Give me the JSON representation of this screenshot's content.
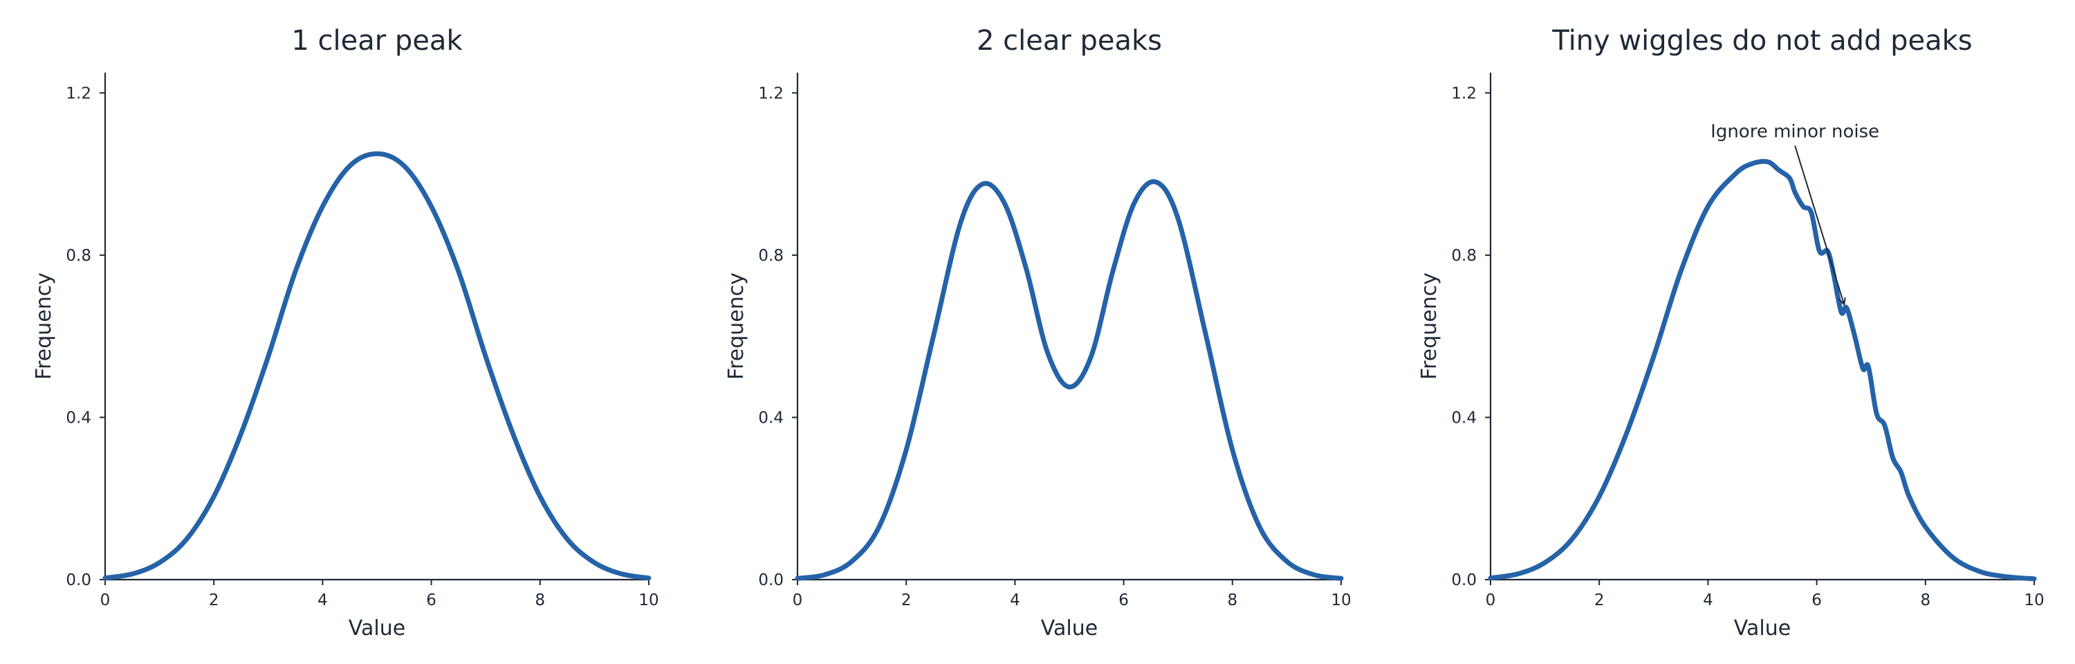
{
  "colors": {
    "series": "#2563a8",
    "text": "#1f2937"
  },
  "chart_data": [
    {
      "type": "line",
      "title": "1 clear peak",
      "xlabel": "Value",
      "ylabel": "Frequency",
      "xlim": [
        0,
        10
      ],
      "ylim": [
        0,
        1.25
      ],
      "xticks": [
        0,
        2,
        4,
        6,
        8,
        10
      ],
      "xtick_labels": [
        "0",
        "2",
        "4",
        "6",
        "8",
        "10"
      ],
      "yticks": [
        0,
        0.4,
        0.8,
        1.2
      ],
      "ytick_labels": [
        "0.0",
        "0.4",
        "0.8",
        "1.2"
      ],
      "grid": false,
      "series": [
        {
          "x": [
            0,
            0.5,
            1,
            1.5,
            2,
            2.5,
            3,
            3.5,
            4,
            4.5,
            5,
            5.5,
            6,
            6.5,
            7,
            7.5,
            8,
            8.5,
            9,
            9.5,
            10
          ],
          "y": [
            0.004,
            0.014,
            0.042,
            0.1,
            0.205,
            0.36,
            0.55,
            0.76,
            0.92,
            1.02,
            1.05,
            1.02,
            0.92,
            0.76,
            0.55,
            0.36,
            0.205,
            0.1,
            0.042,
            0.014,
            0.004
          ]
        }
      ]
    },
    {
      "type": "line",
      "title": "2 clear peaks",
      "xlabel": "Value",
      "ylabel": "Frequency",
      "xlim": [
        0,
        10
      ],
      "ylim": [
        0,
        1.25
      ],
      "xticks": [
        0,
        2,
        4,
        6,
        8,
        10
      ],
      "xtick_labels": [
        "0",
        "2",
        "4",
        "6",
        "8",
        "10"
      ],
      "yticks": [
        0,
        0.4,
        0.8,
        1.2
      ],
      "ytick_labels": [
        "0.0",
        "0.4",
        "0.8",
        "1.2"
      ],
      "grid": false,
      "series": [
        {
          "x": [
            0,
            0.5,
            1,
            1.5,
            2,
            2.5,
            3,
            3.4,
            3.8,
            4.2,
            4.6,
            5,
            5.4,
            5.8,
            6.2,
            6.6,
            7,
            7.5,
            8,
            8.5,
            9,
            9.5,
            10
          ],
          "y": [
            0.003,
            0.012,
            0.045,
            0.13,
            0.32,
            0.6,
            0.88,
            0.975,
            0.93,
            0.77,
            0.56,
            0.475,
            0.55,
            0.76,
            0.93,
            0.98,
            0.89,
            0.61,
            0.32,
            0.13,
            0.045,
            0.012,
            0.003
          ]
        }
      ]
    },
    {
      "type": "line",
      "title": "Tiny wiggles do not add peaks",
      "xlabel": "Value",
      "ylabel": "Frequency",
      "xlim": [
        0,
        10
      ],
      "ylim": [
        0,
        1.25
      ],
      "xticks": [
        0,
        2,
        4,
        6,
        8,
        10
      ],
      "xtick_labels": [
        "0",
        "2",
        "4",
        "6",
        "8",
        "10"
      ],
      "yticks": [
        0,
        0.4,
        0.8,
        1.2
      ],
      "ytick_labels": [
        "0.0",
        "0.4",
        "0.8",
        "1.2"
      ],
      "grid": false,
      "series": [
        {
          "x": [
            0,
            0.5,
            1,
            1.5,
            2,
            2.5,
            3,
            3.5,
            4,
            4.5,
            4.8,
            5.1,
            5.3,
            5.5,
            5.6,
            5.75,
            5.9,
            6.05,
            6.2,
            6.3,
            6.45,
            6.55,
            6.7,
            6.85,
            6.95,
            7.1,
            7.25,
            7.4,
            7.55,
            7.7,
            8,
            8.5,
            9,
            9.5,
            10
          ],
          "y": [
            0.004,
            0.014,
            0.042,
            0.1,
            0.205,
            0.36,
            0.55,
            0.76,
            0.92,
            1.0,
            1.025,
            1.03,
            1.01,
            0.99,
            0.955,
            0.92,
            0.905,
            0.81,
            0.81,
            0.76,
            0.66,
            0.67,
            0.6,
            0.52,
            0.525,
            0.41,
            0.38,
            0.3,
            0.265,
            0.205,
            0.13,
            0.055,
            0.02,
            0.007,
            0.002
          ]
        }
      ],
      "annotations": [
        {
          "text": "Ignore minor noise",
          "x": 5.6,
          "y": 1.08,
          "target_x": 6.5,
          "target_y": 0.68
        }
      ]
    }
  ]
}
